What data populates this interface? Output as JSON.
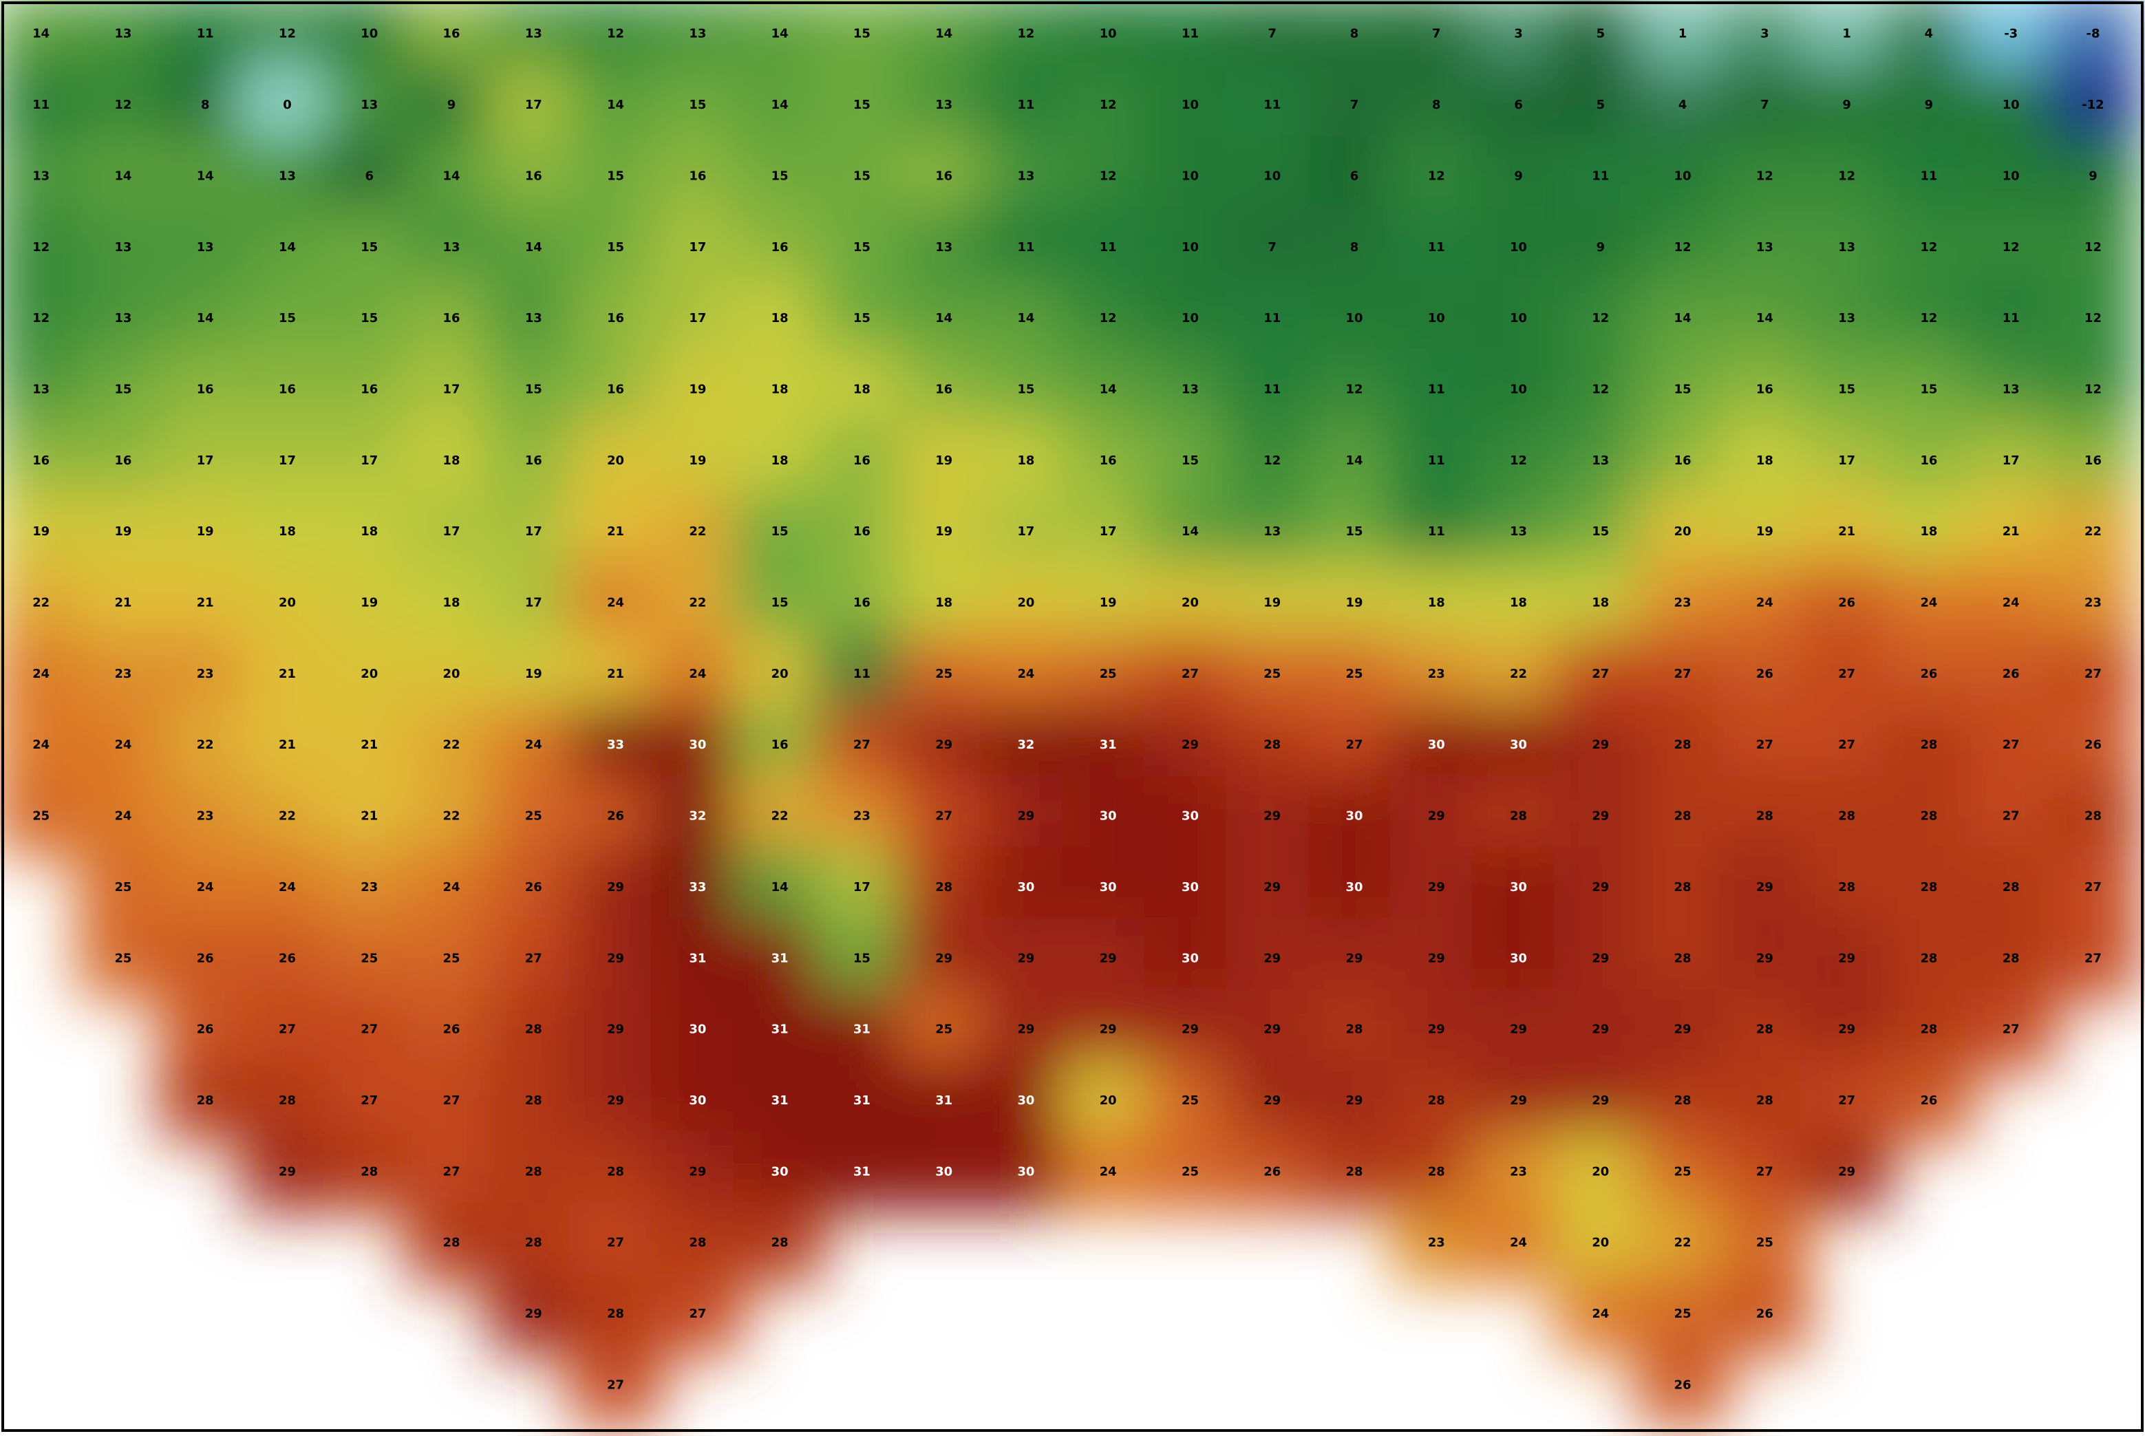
{
  "map": {
    "rows": [
      [
        14,
        13,
        11,
        12,
        10,
        16,
        13,
        12,
        13,
        14,
        15,
        14,
        12,
        10,
        11,
        7,
        8,
        7,
        3,
        5,
        1,
        3,
        1,
        4,
        -3,
        -8
      ],
      [
        11,
        12,
        8,
        0,
        13,
        9,
        17,
        14,
        15,
        14,
        15,
        13,
        11,
        12,
        10,
        11,
        7,
        8,
        6,
        5,
        4,
        7,
        9,
        9,
        10,
        -12
      ],
      [
        13,
        14,
        14,
        13,
        6,
        14,
        16,
        15,
        16,
        15,
        15,
        16,
        13,
        12,
        10,
        10,
        6,
        12,
        9,
        11,
        10,
        12,
        12,
        11,
        10,
        9
      ],
      [
        12,
        13,
        13,
        14,
        15,
        13,
        14,
        15,
        17,
        16,
        15,
        13,
        11,
        11,
        10,
        7,
        8,
        11,
        10,
        9,
        12,
        13,
        13,
        12,
        12,
        12
      ],
      [
        12,
        13,
        14,
        15,
        15,
        16,
        13,
        16,
        17,
        18,
        15,
        14,
        14,
        12,
        10,
        11,
        10,
        10,
        10,
        12,
        14,
        14,
        13,
        12,
        11,
        12
      ],
      [
        13,
        15,
        16,
        16,
        16,
        17,
        15,
        16,
        19,
        18,
        18,
        16,
        15,
        14,
        13,
        11,
        12,
        11,
        10,
        12,
        15,
        16,
        15,
        15,
        13,
        12
      ],
      [
        16,
        16,
        17,
        17,
        17,
        18,
        16,
        20,
        19,
        18,
        16,
        19,
        18,
        16,
        15,
        12,
        14,
        11,
        12,
        13,
        16,
        18,
        17,
        16,
        17,
        16
      ],
      [
        19,
        19,
        19,
        18,
        18,
        17,
        17,
        21,
        22,
        15,
        16,
        19,
        17,
        17,
        14,
        13,
        15,
        11,
        13,
        15,
        20,
        19,
        21,
        18,
        21,
        22
      ],
      [
        22,
        21,
        21,
        20,
        19,
        18,
        17,
        24,
        22,
        15,
        16,
        18,
        20,
        19,
        20,
        19,
        19,
        18,
        18,
        18,
        23,
        24,
        26,
        24,
        24,
        23
      ],
      [
        24,
        23,
        23,
        21,
        20,
        20,
        19,
        21,
        24,
        20,
        11,
        25,
        24,
        25,
        27,
        25,
        25,
        23,
        22,
        27,
        27,
        26,
        27,
        26,
        26,
        27
      ],
      [
        24,
        24,
        22,
        21,
        21,
        22,
        24,
        33,
        30,
        16,
        27,
        29,
        32,
        31,
        29,
        28,
        27,
        30,
        30,
        29,
        28,
        27,
        27,
        28,
        27,
        26
      ],
      [
        25,
        24,
        23,
        22,
        21,
        22,
        25,
        26,
        32,
        22,
        23,
        27,
        29,
        30,
        30,
        29,
        30,
        29,
        28,
        29,
        28,
        28,
        28,
        28,
        27,
        28
      ],
      [
        null,
        25,
        24,
        24,
        23,
        24,
        26,
        29,
        33,
        14,
        17,
        28,
        30,
        30,
        30,
        29,
        30,
        29,
        30,
        29,
        28,
        29,
        28,
        28,
        28,
        27
      ],
      [
        null,
        25,
        26,
        26,
        25,
        25,
        27,
        29,
        31,
        31,
        15,
        29,
        29,
        29,
        30,
        29,
        29,
        29,
        30,
        29,
        28,
        29,
        29,
        28,
        28,
        27
      ],
      [
        null,
        null,
        26,
        27,
        27,
        26,
        28,
        29,
        30,
        31,
        31,
        25,
        29,
        29,
        29,
        29,
        28,
        29,
        29,
        29,
        29,
        28,
        29,
        28,
        27,
        null
      ],
      [
        null,
        null,
        28,
        28,
        27,
        27,
        28,
        29,
        30,
        31,
        31,
        31,
        30,
        20,
        25,
        29,
        29,
        28,
        29,
        29,
        28,
        28,
        27,
        26,
        null,
        null
      ],
      [
        null,
        null,
        null,
        29,
        28,
        27,
        28,
        28,
        29,
        30,
        31,
        30,
        30,
        24,
        25,
        26,
        28,
        28,
        23,
        20,
        25,
        27,
        29,
        null,
        null,
        null
      ],
      [
        null,
        null,
        null,
        null,
        null,
        28,
        28,
        27,
        28,
        28,
        null,
        null,
        null,
        null,
        null,
        null,
        null,
        23,
        24,
        20,
        22,
        25,
        null,
        null,
        null,
        null
      ],
      [
        null,
        null,
        null,
        null,
        null,
        null,
        29,
        28,
        27,
        null,
        null,
        null,
        null,
        null,
        null,
        null,
        null,
        null,
        null,
        24,
        25,
        26,
        null,
        null,
        null,
        null
      ],
      [
        null,
        null,
        null,
        null,
        null,
        null,
        null,
        27,
        null,
        null,
        null,
        null,
        null,
        null,
        null,
        null,
        null,
        null,
        null,
        null,
        26,
        null,
        null,
        null,
        null,
        null
      ]
    ]
  }
}
